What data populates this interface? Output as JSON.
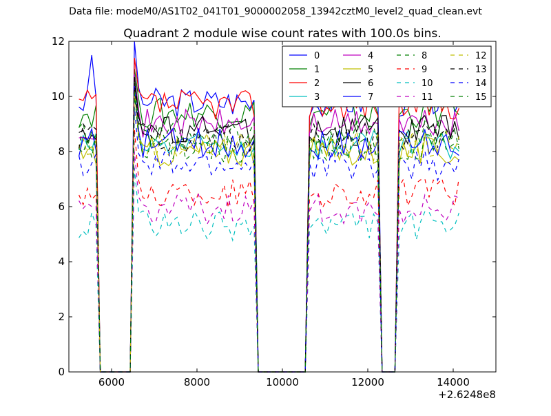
{
  "figure": {
    "suptitle": "Data file: modeM0/AS1T02_041T01_9000002058_13942cztM0_level2_quad_clean.evt"
  },
  "chart_data": {
    "type": "line",
    "title": "Quadrant 2 module wise count rates with 100.0s bins.",
    "xlabel": "",
    "ylabel": "",
    "x_offset_label": "+2.6248e8",
    "xlim": [
      5000,
      15000
    ],
    "ylim": [
      0,
      12
    ],
    "xticks": [
      6000,
      8000,
      10000,
      12000,
      14000
    ],
    "yticks": [
      0,
      2,
      4,
      6,
      8,
      10,
      12
    ],
    "grid": false,
    "legend": {
      "placement": "top-right",
      "ncol": 4
    },
    "x": [
      5236,
      5336,
      5436,
      5536,
      5636,
      5736,
      5836,
      5936,
      6036,
      6136,
      6236,
      6336,
      6436,
      6536,
      6636,
      6736,
      6836,
      6936,
      7036,
      7136,
      7236,
      7336,
      7436,
      7536,
      7636,
      7736,
      7836,
      7936,
      8036,
      8136,
      8236,
      8336,
      8436,
      8536,
      8636,
      8736,
      8836,
      8936,
      9036,
      9136,
      9236,
      9336,
      9436,
      9536,
      9636,
      9736,
      9836,
      9936,
      10036,
      10136,
      10236,
      10336,
      10436,
      10536,
      10636,
      10736,
      10836,
      10936,
      11036,
      11136,
      11236,
      11336,
      11436,
      11536,
      11636,
      11736,
      11836,
      11936,
      12036,
      12136,
      12236,
      12336,
      12436,
      12536,
      12636,
      12736,
      12836,
      12936,
      13036,
      13136,
      13236,
      13336,
      13436,
      13536,
      13636,
      13736,
      13836,
      13936,
      14036,
      14136
    ],
    "series": [
      {
        "name": "0",
        "color": "#0000ff",
        "dash": "solid",
        "level": 9.8,
        "peak": 12.0
      },
      {
        "name": "1",
        "color": "#008000",
        "dash": "solid",
        "level": 9.4,
        "peak": 11.0
      },
      {
        "name": "2",
        "color": "#ff0000",
        "dash": "solid",
        "level": 9.7,
        "peak": 11.4
      },
      {
        "name": "3",
        "color": "#00bfbf",
        "dash": "solid",
        "level": 8.2,
        "peak": 10.3
      },
      {
        "name": "4",
        "color": "#bf00bf",
        "dash": "solid",
        "level": 9.0,
        "peak": 10.8
      },
      {
        "name": "5",
        "color": "#bfbf00",
        "dash": "solid",
        "level": 8.0,
        "peak": 10.2
      },
      {
        "name": "6",
        "color": "#000000",
        "dash": "solid",
        "level": 8.8,
        "peak": 10.7
      },
      {
        "name": "7",
        "color": "#0000ff",
        "dash": "solid",
        "level": 8.3,
        "peak": 10.4
      },
      {
        "name": "8",
        "color": "#008000",
        "dash": "dashed",
        "level": 8.6,
        "peak": 10.6
      },
      {
        "name": "9",
        "color": "#ff0000",
        "dash": "dashed",
        "level": 6.5,
        "peak": 8.8
      },
      {
        "name": "10",
        "color": "#00bfbf",
        "dash": "dashed",
        "level": 5.3,
        "peak": 7.4
      },
      {
        "name": "11",
        "color": "#bf00bf",
        "dash": "dashed",
        "level": 5.9,
        "peak": 8.0
      },
      {
        "name": "12",
        "color": "#bfbf00",
        "dash": "dashed",
        "level": 8.2,
        "peak": 10.2
      },
      {
        "name": "13",
        "color": "#000000",
        "dash": "dashed",
        "level": 8.5,
        "peak": 10.5
      },
      {
        "name": "14",
        "color": "#0000ff",
        "dash": "dashed",
        "level": 7.5,
        "peak": 9.6
      },
      {
        "name": "15",
        "color": "#008000",
        "dash": "dashed",
        "level": 8.1,
        "peak": 10.1
      }
    ],
    "gaps": [
      [
        5700,
        6480
      ],
      [
        9420,
        10560
      ],
      [
        12300,
        12700
      ]
    ]
  }
}
